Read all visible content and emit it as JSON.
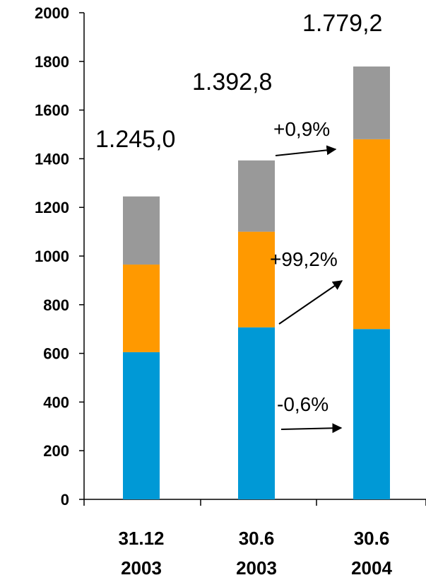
{
  "chart_data": {
    "type": "bar",
    "stacked": true,
    "categories": [
      [
        "31.12",
        "2003"
      ],
      [
        "30.6",
        "2003"
      ],
      [
        "30.6",
        "2004"
      ]
    ],
    "ylim": [
      0,
      2000
    ],
    "yticks": [
      0,
      200,
      400,
      600,
      800,
      1000,
      1200,
      1400,
      1600,
      1800,
      2000
    ],
    "series": [
      {
        "color": "#0099d6",
        "values": [
          605,
          707,
          700
        ]
      },
      {
        "color": "#ff9900",
        "values": [
          360,
          393,
          780
        ]
      },
      {
        "color": "#999999",
        "values": [
          280,
          293,
          299
        ]
      }
    ],
    "totals": [
      "1.245,0",
      "1.392,8",
      "1.779,2"
    ],
    "annotations": [
      "+0,9%",
      "+99,2%",
      "-0,6%"
    ],
    "grid": false,
    "legend": "none"
  }
}
